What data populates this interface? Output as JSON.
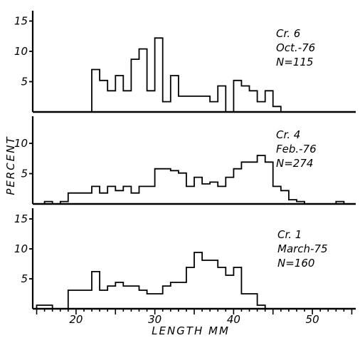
{
  "chart_data": {
    "type": "histogram",
    "xlabel": "LENGTH MM",
    "ylabel": "PERCENT",
    "xlim": [
      14.5,
      55.5
    ],
    "x_ticks": [
      20,
      30,
      40,
      50
    ],
    "x_tick_labels": [
      "20",
      "30",
      "40",
      "50"
    ],
    "bin_width": 1,
    "panels": [
      {
        "id": "cr6",
        "ylim": [
          0,
          17
        ],
        "y_ticks": [
          5,
          10,
          15
        ],
        "y_tick_labels": [
          "5",
          "10",
          "15"
        ],
        "annotation": [
          "Cr. 6",
          "Oct.-76",
          "N=115"
        ],
        "bins": [
          [
            21,
            0
          ],
          [
            22,
            7
          ],
          [
            23,
            5.2
          ],
          [
            24,
            3.5
          ],
          [
            25,
            6
          ],
          [
            26,
            3.5
          ],
          [
            27,
            8.7
          ],
          [
            28,
            10.4
          ],
          [
            29,
            3.5
          ],
          [
            30,
            12.2
          ],
          [
            31,
            1.7
          ],
          [
            32,
            6
          ],
          [
            33,
            2.6
          ],
          [
            34,
            2.6
          ],
          [
            35,
            2.6
          ],
          [
            36,
            2.6
          ],
          [
            37,
            1.7
          ],
          [
            38,
            4.3
          ],
          [
            39,
            0
          ],
          [
            40,
            5.2
          ],
          [
            41,
            4.3
          ],
          [
            42,
            3.5
          ],
          [
            43,
            1.7
          ],
          [
            44,
            3.5
          ],
          [
            45,
            0.9
          ],
          [
            46,
            0
          ]
        ]
      },
      {
        "id": "cr4",
        "ylim": [
          0,
          14
        ],
        "y_ticks": [
          5,
          10
        ],
        "y_tick_labels": [
          "5",
          "10"
        ],
        "annotation": [
          "Cr. 4",
          "Feb.-76",
          "N=274"
        ],
        "bins": [
          [
            16,
            0.4
          ],
          [
            17,
            0
          ],
          [
            18,
            0.4
          ],
          [
            19,
            1.8
          ],
          [
            20,
            1.8
          ],
          [
            21,
            1.8
          ],
          [
            22,
            2.9
          ],
          [
            23,
            1.8
          ],
          [
            24,
            2.9
          ],
          [
            25,
            2.2
          ],
          [
            26,
            2.9
          ],
          [
            27,
            1.8
          ],
          [
            28,
            2.9
          ],
          [
            29,
            2.9
          ],
          [
            30,
            5.8
          ],
          [
            31,
            5.8
          ],
          [
            32,
            5.5
          ],
          [
            33,
            5.1
          ],
          [
            34,
            2.9
          ],
          [
            35,
            4.4
          ],
          [
            36,
            3.3
          ],
          [
            37,
            3.6
          ],
          [
            38,
            2.9
          ],
          [
            39,
            4.4
          ],
          [
            40,
            5.8
          ],
          [
            41,
            6.9
          ],
          [
            42,
            6.9
          ],
          [
            43,
            8
          ],
          [
            44,
            6.9
          ],
          [
            45,
            2.9
          ],
          [
            46,
            2.2
          ],
          [
            47,
            0.7
          ],
          [
            48,
            0.4
          ],
          [
            49,
            0
          ],
          [
            50,
            0
          ],
          [
            51,
            0
          ],
          [
            52,
            0
          ],
          [
            53,
            0.4
          ]
        ]
      },
      {
        "id": "cr1",
        "ylim": [
          0,
          17
        ],
        "y_ticks": [
          5,
          10,
          15
        ],
        "y_tick_labels": [
          "5",
          "10",
          "15"
        ],
        "annotation": [
          "Cr. 1",
          "March-75",
          "N=160"
        ],
        "bins": [
          [
            15,
            0.6
          ],
          [
            16,
            0.6
          ],
          [
            17,
            0
          ],
          [
            18,
            0
          ],
          [
            19,
            3.1
          ],
          [
            20,
            3.1
          ],
          [
            21,
            3.1
          ],
          [
            22,
            6.2
          ],
          [
            23,
            3.1
          ],
          [
            24,
            3.8
          ],
          [
            25,
            4.4
          ],
          [
            26,
            3.8
          ],
          [
            27,
            3.8
          ],
          [
            28,
            3.1
          ],
          [
            29,
            2.5
          ],
          [
            30,
            2.5
          ],
          [
            31,
            3.8
          ],
          [
            32,
            4.4
          ],
          [
            33,
            4.4
          ],
          [
            34,
            6.9
          ],
          [
            35,
            9.4
          ],
          [
            36,
            8.1
          ],
          [
            37,
            8.1
          ],
          [
            38,
            6.9
          ],
          [
            39,
            5.6
          ],
          [
            40,
            6.9
          ],
          [
            41,
            2.5
          ],
          [
            42,
            2.5
          ],
          [
            43,
            0.6
          ],
          [
            44,
            0
          ]
        ]
      }
    ]
  }
}
